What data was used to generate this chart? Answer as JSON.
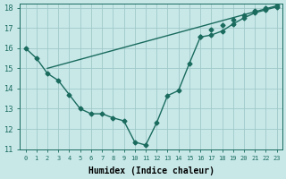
{
  "xlabel": "Humidex (Indice chaleur)",
  "bg_color": "#c8e8e8",
  "line_color": "#1a6b5e",
  "grid_color": "#a0c8c8",
  "xlim": [
    -0.5,
    23.5
  ],
  "ylim": [
    11,
    18.2
  ],
  "yticks": [
    11,
    12,
    13,
    14,
    15,
    16,
    17,
    18
  ],
  "xticks": [
    0,
    1,
    2,
    3,
    4,
    5,
    6,
    7,
    8,
    9,
    10,
    11,
    12,
    13,
    14,
    15,
    16,
    17,
    18,
    19,
    20,
    21,
    22,
    23
  ],
  "xtick_labels": [
    "0",
    "1",
    "2",
    "3",
    "4",
    "5",
    "6",
    "7",
    "8",
    "9",
    "10",
    "11",
    "12",
    "13",
    "14",
    "15",
    "16",
    "17",
    "18",
    "19",
    "20",
    "21",
    "22",
    "23"
  ],
  "line1_x": [
    0,
    1,
    2,
    3,
    4,
    5,
    6,
    7,
    8,
    9,
    10,
    11,
    12,
    13,
    14,
    15,
    16,
    17,
    18,
    19,
    20,
    21,
    22,
    23
  ],
  "line1_y": [
    16.0,
    15.5,
    14.75,
    14.4,
    13.7,
    13.0,
    12.75,
    12.75,
    12.55,
    12.4,
    11.35,
    11.2,
    12.3,
    13.65,
    13.9,
    15.25,
    16.55,
    16.65,
    16.85,
    17.2,
    17.5,
    17.75,
    17.9,
    18.05
  ],
  "line2_x": [
    2,
    23
  ],
  "line2_y": [
    15.0,
    18.1
  ],
  "line2_mid_x": [
    16,
    17,
    18,
    19,
    20,
    21,
    22,
    23
  ],
  "line2_mid_y": [
    16.55,
    16.9,
    17.15,
    17.4,
    17.65,
    17.85,
    18.0,
    18.1
  ],
  "marker": "D",
  "markersize": 2.5,
  "linewidth": 1.0
}
